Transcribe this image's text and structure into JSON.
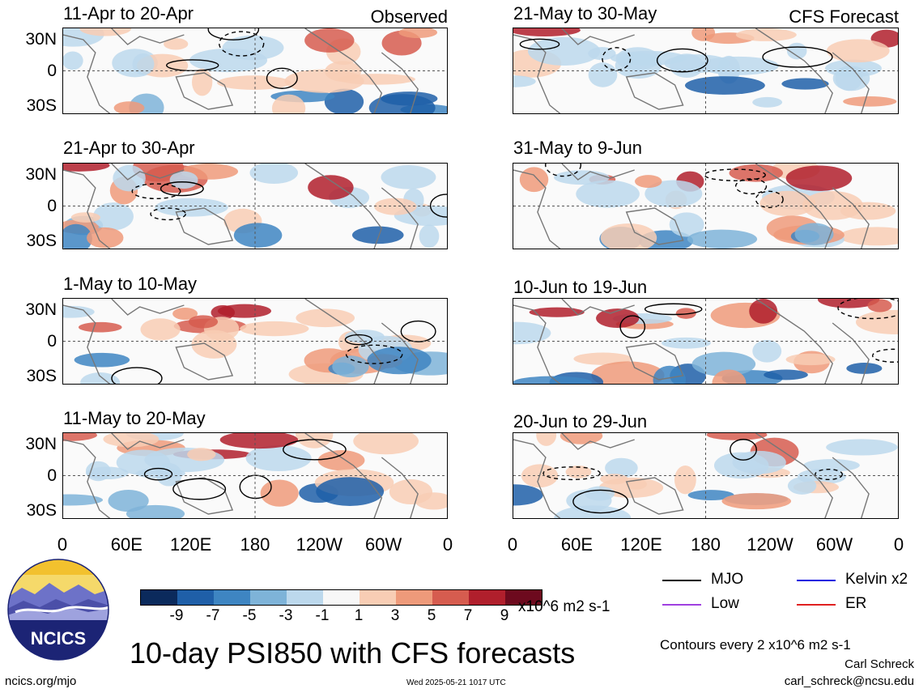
{
  "panels": {
    "left": [
      {
        "title": "11-Apr to 20-Apr",
        "label": "Observed"
      },
      {
        "title": "21-Apr to 30-Apr",
        "label": ""
      },
      {
        "title": "1-May to 10-May",
        "label": ""
      },
      {
        "title": "11-May to 20-May",
        "label": ""
      }
    ],
    "right": [
      {
        "title": "21-May to 30-May",
        "label": "CFS Forecast"
      },
      {
        "title": "31-May to 9-Jun",
        "label": ""
      },
      {
        "title": "10-Jun to 19-Jun",
        "label": ""
      },
      {
        "title": "20-Jun to 29-Jun",
        "label": ""
      }
    ]
  },
  "axes": {
    "lat_labels": [
      "30N",
      "0",
      "30S"
    ],
    "lon_labels": [
      "0",
      "60E",
      "120E",
      "180",
      "120W",
      "60W",
      "0"
    ]
  },
  "colorbar": {
    "ticks": [
      "-9",
      "-7",
      "-5",
      "-3",
      "-1",
      "1",
      "3",
      "5",
      "7",
      "9"
    ],
    "colors": [
      "#0b2a5c",
      "#1f5fa8",
      "#3e85c2",
      "#7eb3d8",
      "#bcd8ec",
      "#f7f7f7",
      "#f8cdb4",
      "#ee9a7a",
      "#d65c4f",
      "#b01f2c",
      "#6d0a1e"
    ],
    "units": "x10^6 m2 s-1"
  },
  "legend": {
    "items": [
      {
        "label": "MJO",
        "color": "#000000"
      },
      {
        "label": "Kelvin x2",
        "color": "#1010e0"
      },
      {
        "label": "Low",
        "color": "#a040e0"
      },
      {
        "label": "ER",
        "color": "#e02020"
      }
    ],
    "contours_note": "Contours every 2 x10^6 m2 s-1"
  },
  "title": "10-day PSI850 with CFS forecasts",
  "logo_text": "NCICS",
  "footer": {
    "site": "ncics.org/mjo",
    "timestamp": "Wed 2025-05-21 1017 UTC",
    "author": "Carl Schreck",
    "email": "carl_schreck@ncsu.edu"
  }
}
